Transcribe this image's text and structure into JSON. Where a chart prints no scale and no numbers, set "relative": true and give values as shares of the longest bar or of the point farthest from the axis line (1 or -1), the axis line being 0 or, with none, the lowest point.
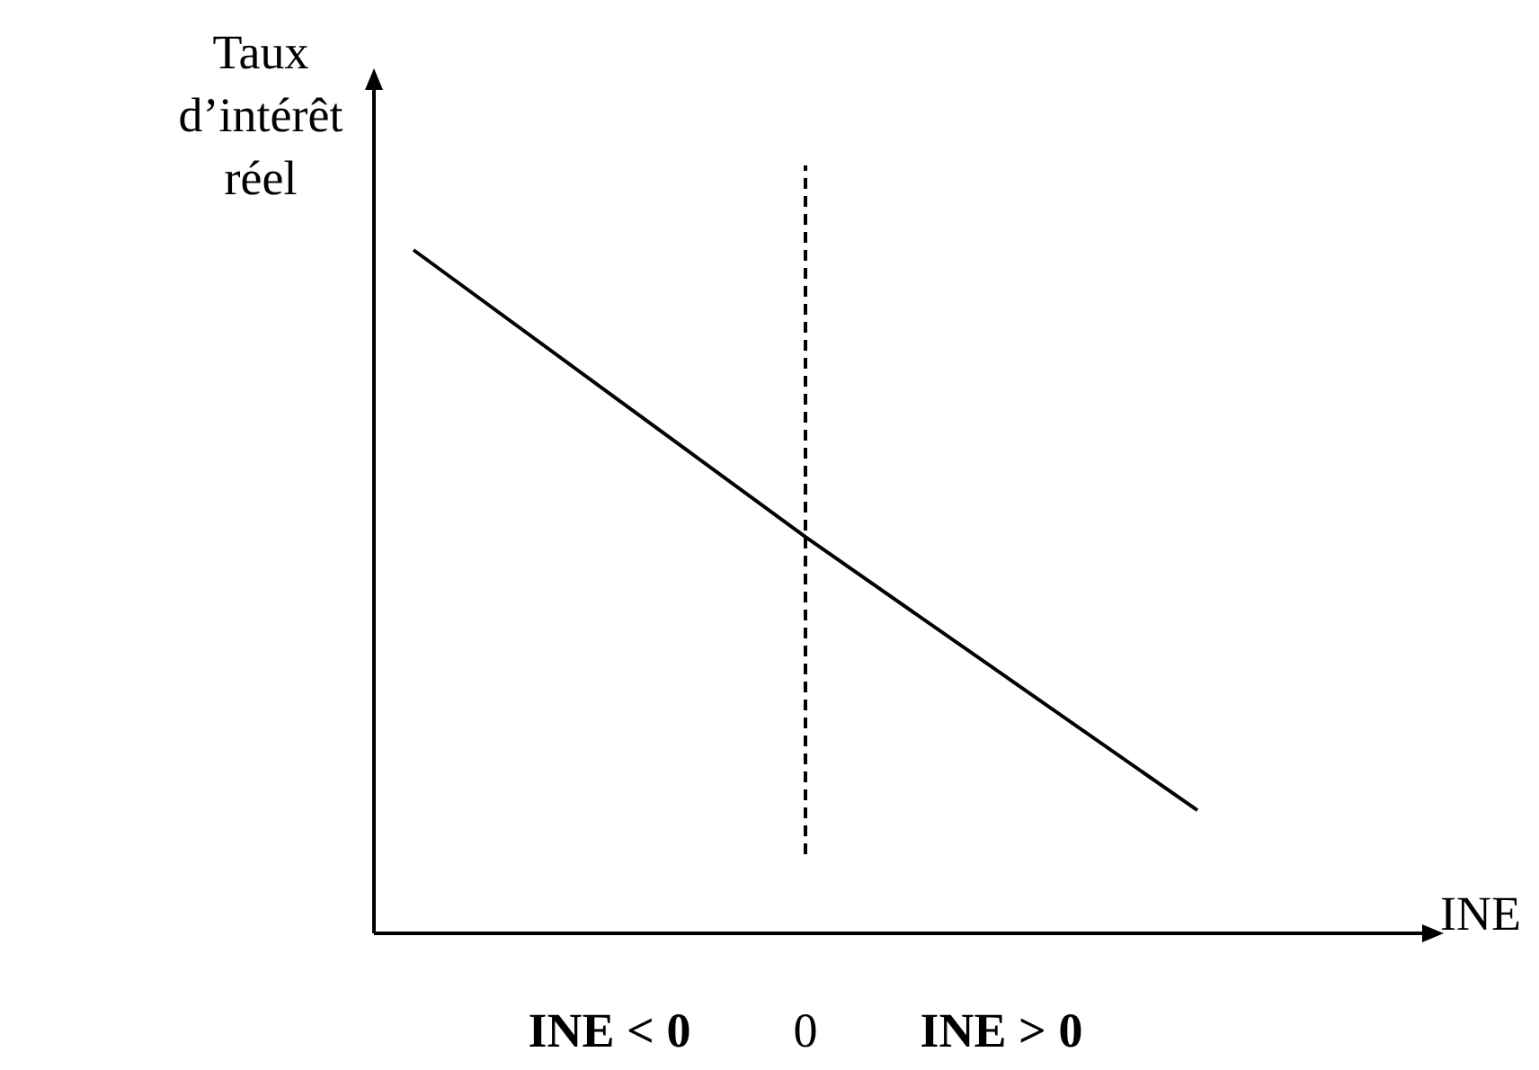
{
  "chart_data": {
    "type": "line",
    "relative": true,
    "ylabel": "Taux d’intérêt réel",
    "xlabel": "INE",
    "categories": [
      null,
      "INE < 0",
      "0",
      "INE > 0",
      null
    ],
    "series": [
      {
        "color": "#000000",
        "values": [
          1,
          0.79,
          0.58,
          0.38,
          0.18
        ]
      }
    ],
    "ref_lines": [
      {
        "axis": "x",
        "value": "0",
        "line_style": "dashed",
        "color": "#000000"
      }
    ]
  }
}
